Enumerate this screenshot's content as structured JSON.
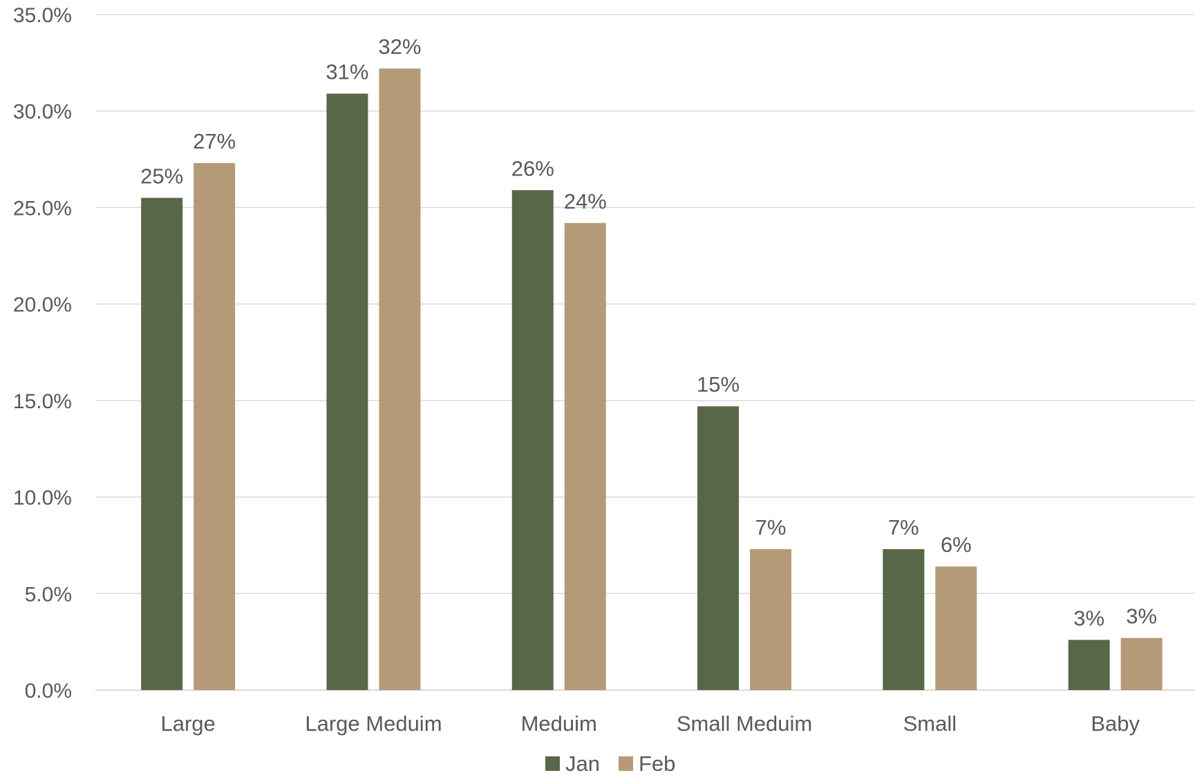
{
  "chart_data": {
    "type": "bar",
    "categories": [
      "Large",
      "Large Meduim",
      "Meduim",
      "Small Meduim",
      "Small",
      "Baby"
    ],
    "series": [
      {
        "name": "Jan",
        "color": "#586747",
        "values": [
          25.5,
          30.9,
          25.9,
          14.7,
          7.3,
          2.6
        ],
        "labels": [
          "25%",
          "31%",
          "26%",
          "15%",
          "7%",
          "3%"
        ]
      },
      {
        "name": "Feb",
        "color": "#b59a78",
        "values": [
          27.3,
          32.2,
          24.2,
          7.3,
          6.4,
          2.7
        ],
        "labels": [
          "27%",
          "32%",
          "24%",
          "7%",
          "6%",
          "3%"
        ]
      }
    ],
    "ylim": [
      0,
      35
    ],
    "yticks": [
      0,
      5,
      10,
      15,
      20,
      25,
      30,
      35
    ],
    "ytick_labels": [
      "0.0%",
      "5.0%",
      "10.0%",
      "15.0%",
      "20.0%",
      "25.0%",
      "30.0%",
      "35.0%"
    ],
    "grid": true,
    "legend_position": "bottom",
    "title": "",
    "xlabel": "",
    "ylabel": ""
  }
}
